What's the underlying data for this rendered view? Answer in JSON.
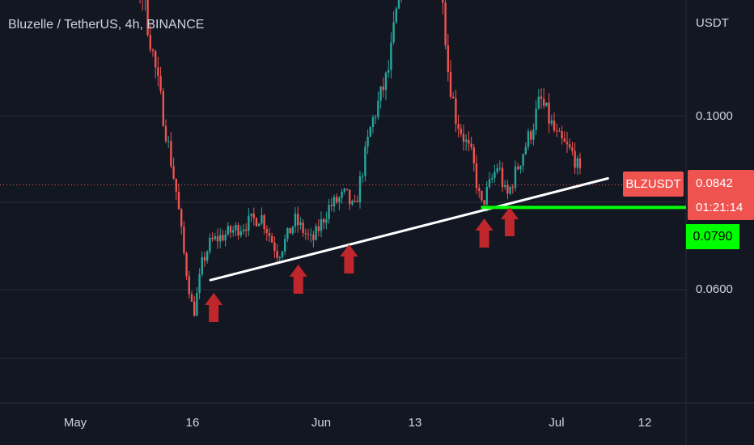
{
  "header": {
    "title": "Bluzelle / TetherUS, 4h, BINANCE",
    "currency": "USDT"
  },
  "price_axis": {
    "ticks": [
      {
        "label": "0.1000",
        "value": 0.1
      },
      {
        "label": "0.0600",
        "value": 0.06
      }
    ]
  },
  "time_axis": {
    "ticks": [
      "May",
      "16",
      "Jun",
      "13",
      "Jul",
      "12"
    ]
  },
  "last_price": {
    "symbol": "BLZUSDT",
    "price": "0.0842",
    "countdown": "01:21:14"
  },
  "support_level": {
    "label": "0.0790",
    "value": 0.079
  },
  "colors": {
    "background": "#131722",
    "up_candle": "#26a69a",
    "down_candle": "#ef5350",
    "trendline": "#ffffff",
    "support": "#00ff00",
    "arrow": "#c0272d",
    "grid": "#2a2e39"
  },
  "chart_data": {
    "type": "line",
    "title": "Bluzelle / TetherUS, 4h, BINANCE",
    "xlabel": "",
    "ylabel": "USDT",
    "ylim": [
      0.04,
      0.145
    ],
    "grid": true,
    "x_ticks": [
      "May",
      "16",
      "Jun",
      "13",
      "Jul",
      "12"
    ],
    "series": [
      {
        "name": "BLZUSDT",
        "x": [
          "2021-04-30",
          "2021-05-04",
          "2021-05-08",
          "2021-05-10",
          "2021-05-12",
          "2021-05-13",
          "2021-05-14",
          "2021-05-15",
          "2021-05-16",
          "2021-05-18",
          "2021-05-20",
          "2021-05-22",
          "2021-05-24",
          "2021-05-26",
          "2021-05-28",
          "2021-05-30",
          "2021-06-01",
          "2021-06-02",
          "2021-06-04",
          "2021-06-06",
          "2021-06-08",
          "2021-06-10",
          "2021-06-12",
          "2021-06-13",
          "2021-06-14",
          "2021-06-16",
          "2021-06-17",
          "2021-06-19",
          "2021-06-20",
          "2021-06-22",
          "2021-06-23",
          "2021-06-24",
          "2021-06-26",
          "2021-06-28",
          "2021-06-29"
        ],
        "values": [
          0.141,
          0.138,
          0.128,
          0.105,
          0.082,
          0.066,
          0.054,
          0.066,
          0.071,
          0.073,
          0.075,
          0.077,
          0.068,
          0.076,
          0.071,
          0.079,
          0.082,
          0.078,
          0.098,
          0.11,
          0.138,
          0.148,
          0.146,
          0.112,
          0.1,
          0.09,
          0.079,
          0.089,
          0.081,
          0.092,
          0.097,
          0.104,
          0.095,
          0.091,
          0.0842
        ]
      }
    ],
    "annotations": [
      {
        "type": "trendline",
        "from": [
          "2021-05-16",
          0.0622
        ],
        "to": [
          "2021-07-02",
          0.0857
        ]
      },
      {
        "type": "horizontal",
        "from": "2021-06-17",
        "value": 0.079,
        "label": "0.0790"
      },
      {
        "type": "up-arrow",
        "at": "2021-05-16"
      },
      {
        "type": "up-arrow",
        "at": "2021-05-26"
      },
      {
        "type": "up-arrow",
        "at": "2021-06-01"
      },
      {
        "type": "up-arrow",
        "at": "2021-06-17"
      },
      {
        "type": "up-arrow",
        "at": "2021-06-20"
      }
    ],
    "last_price": 0.0842
  }
}
